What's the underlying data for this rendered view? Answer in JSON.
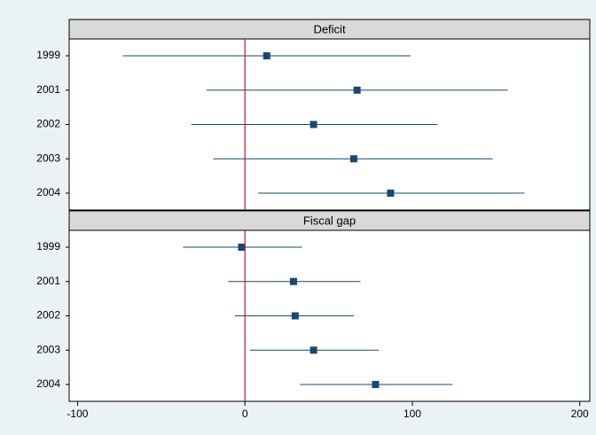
{
  "chart_data": {
    "type": "dot-errorbar",
    "xlim": [
      -105,
      206
    ],
    "xticks": [
      -100,
      0,
      100,
      200
    ],
    "reference_line": 0,
    "reference_color": "#c0143c",
    "marker_color": "#1a476f",
    "line_color": "#1a476f",
    "panels": [
      {
        "title": "Deficit",
        "categories": [
          "1999",
          "2001",
          "2002",
          "2003",
          "2004"
        ],
        "values": [
          13,
          67,
          41,
          65,
          87
        ],
        "lower": [
          -73,
          -23,
          -32,
          -19,
          8
        ],
        "upper": [
          99,
          157,
          115,
          148,
          167
        ]
      },
      {
        "title": "Fiscal gap",
        "categories": [
          "1999",
          "2001",
          "2002",
          "2003",
          "2004"
        ],
        "values": [
          -2,
          29,
          30,
          41,
          78
        ],
        "lower": [
          -37,
          -10,
          -6,
          3,
          33
        ],
        "upper": [
          34,
          69,
          65,
          80,
          124
        ]
      }
    ]
  }
}
